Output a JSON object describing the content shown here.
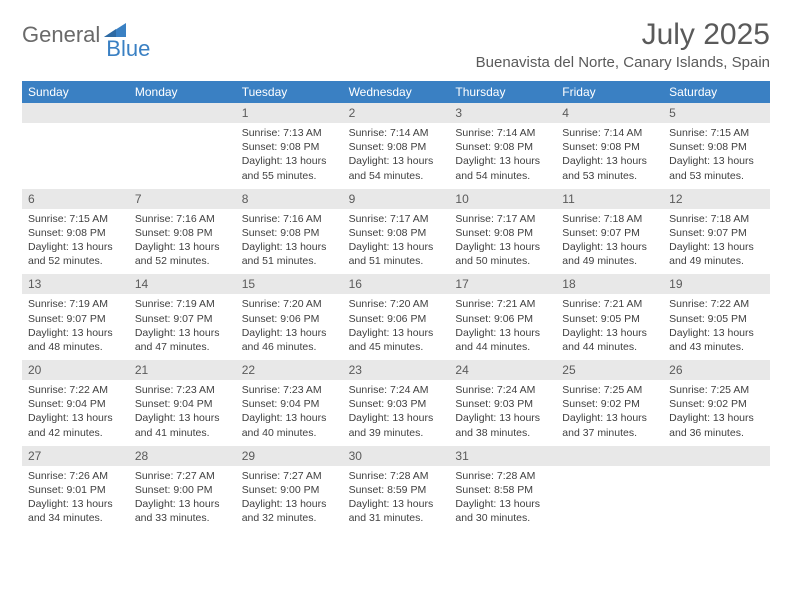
{
  "brand": {
    "part1": "General",
    "part2": "Blue"
  },
  "title": "July 2025",
  "location": "Buenavista del Norte, Canary Islands, Spain",
  "colors": {
    "header_bg": "#3a80c3",
    "daynum_bg": "#e8e8e8",
    "text_muted": "#5a5a5a",
    "text_body": "#404040",
    "logo_gray": "#6a6a6a",
    "logo_blue": "#3a80c3",
    "page_bg": "#ffffff"
  },
  "dow": [
    "Sunday",
    "Monday",
    "Tuesday",
    "Wednesday",
    "Thursday",
    "Friday",
    "Saturday"
  ],
  "weeks": [
    [
      {
        "n": "",
        "sunrise": "",
        "sunset": "",
        "daylight": ""
      },
      {
        "n": "",
        "sunrise": "",
        "sunset": "",
        "daylight": ""
      },
      {
        "n": "1",
        "sunrise": "Sunrise: 7:13 AM",
        "sunset": "Sunset: 9:08 PM",
        "daylight": "Daylight: 13 hours and 55 minutes."
      },
      {
        "n": "2",
        "sunrise": "Sunrise: 7:14 AM",
        "sunset": "Sunset: 9:08 PM",
        "daylight": "Daylight: 13 hours and 54 minutes."
      },
      {
        "n": "3",
        "sunrise": "Sunrise: 7:14 AM",
        "sunset": "Sunset: 9:08 PM",
        "daylight": "Daylight: 13 hours and 54 minutes."
      },
      {
        "n": "4",
        "sunrise": "Sunrise: 7:14 AM",
        "sunset": "Sunset: 9:08 PM",
        "daylight": "Daylight: 13 hours and 53 minutes."
      },
      {
        "n": "5",
        "sunrise": "Sunrise: 7:15 AM",
        "sunset": "Sunset: 9:08 PM",
        "daylight": "Daylight: 13 hours and 53 minutes."
      }
    ],
    [
      {
        "n": "6",
        "sunrise": "Sunrise: 7:15 AM",
        "sunset": "Sunset: 9:08 PM",
        "daylight": "Daylight: 13 hours and 52 minutes."
      },
      {
        "n": "7",
        "sunrise": "Sunrise: 7:16 AM",
        "sunset": "Sunset: 9:08 PM",
        "daylight": "Daylight: 13 hours and 52 minutes."
      },
      {
        "n": "8",
        "sunrise": "Sunrise: 7:16 AM",
        "sunset": "Sunset: 9:08 PM",
        "daylight": "Daylight: 13 hours and 51 minutes."
      },
      {
        "n": "9",
        "sunrise": "Sunrise: 7:17 AM",
        "sunset": "Sunset: 9:08 PM",
        "daylight": "Daylight: 13 hours and 51 minutes."
      },
      {
        "n": "10",
        "sunrise": "Sunrise: 7:17 AM",
        "sunset": "Sunset: 9:08 PM",
        "daylight": "Daylight: 13 hours and 50 minutes."
      },
      {
        "n": "11",
        "sunrise": "Sunrise: 7:18 AM",
        "sunset": "Sunset: 9:07 PM",
        "daylight": "Daylight: 13 hours and 49 minutes."
      },
      {
        "n": "12",
        "sunrise": "Sunrise: 7:18 AM",
        "sunset": "Sunset: 9:07 PM",
        "daylight": "Daylight: 13 hours and 49 minutes."
      }
    ],
    [
      {
        "n": "13",
        "sunrise": "Sunrise: 7:19 AM",
        "sunset": "Sunset: 9:07 PM",
        "daylight": "Daylight: 13 hours and 48 minutes."
      },
      {
        "n": "14",
        "sunrise": "Sunrise: 7:19 AM",
        "sunset": "Sunset: 9:07 PM",
        "daylight": "Daylight: 13 hours and 47 minutes."
      },
      {
        "n": "15",
        "sunrise": "Sunrise: 7:20 AM",
        "sunset": "Sunset: 9:06 PM",
        "daylight": "Daylight: 13 hours and 46 minutes."
      },
      {
        "n": "16",
        "sunrise": "Sunrise: 7:20 AM",
        "sunset": "Sunset: 9:06 PM",
        "daylight": "Daylight: 13 hours and 45 minutes."
      },
      {
        "n": "17",
        "sunrise": "Sunrise: 7:21 AM",
        "sunset": "Sunset: 9:06 PM",
        "daylight": "Daylight: 13 hours and 44 minutes."
      },
      {
        "n": "18",
        "sunrise": "Sunrise: 7:21 AM",
        "sunset": "Sunset: 9:05 PM",
        "daylight": "Daylight: 13 hours and 44 minutes."
      },
      {
        "n": "19",
        "sunrise": "Sunrise: 7:22 AM",
        "sunset": "Sunset: 9:05 PM",
        "daylight": "Daylight: 13 hours and 43 minutes."
      }
    ],
    [
      {
        "n": "20",
        "sunrise": "Sunrise: 7:22 AM",
        "sunset": "Sunset: 9:04 PM",
        "daylight": "Daylight: 13 hours and 42 minutes."
      },
      {
        "n": "21",
        "sunrise": "Sunrise: 7:23 AM",
        "sunset": "Sunset: 9:04 PM",
        "daylight": "Daylight: 13 hours and 41 minutes."
      },
      {
        "n": "22",
        "sunrise": "Sunrise: 7:23 AM",
        "sunset": "Sunset: 9:04 PM",
        "daylight": "Daylight: 13 hours and 40 minutes."
      },
      {
        "n": "23",
        "sunrise": "Sunrise: 7:24 AM",
        "sunset": "Sunset: 9:03 PM",
        "daylight": "Daylight: 13 hours and 39 minutes."
      },
      {
        "n": "24",
        "sunrise": "Sunrise: 7:24 AM",
        "sunset": "Sunset: 9:03 PM",
        "daylight": "Daylight: 13 hours and 38 minutes."
      },
      {
        "n": "25",
        "sunrise": "Sunrise: 7:25 AM",
        "sunset": "Sunset: 9:02 PM",
        "daylight": "Daylight: 13 hours and 37 minutes."
      },
      {
        "n": "26",
        "sunrise": "Sunrise: 7:25 AM",
        "sunset": "Sunset: 9:02 PM",
        "daylight": "Daylight: 13 hours and 36 minutes."
      }
    ],
    [
      {
        "n": "27",
        "sunrise": "Sunrise: 7:26 AM",
        "sunset": "Sunset: 9:01 PM",
        "daylight": "Daylight: 13 hours and 34 minutes."
      },
      {
        "n": "28",
        "sunrise": "Sunrise: 7:27 AM",
        "sunset": "Sunset: 9:00 PM",
        "daylight": "Daylight: 13 hours and 33 minutes."
      },
      {
        "n": "29",
        "sunrise": "Sunrise: 7:27 AM",
        "sunset": "Sunset: 9:00 PM",
        "daylight": "Daylight: 13 hours and 32 minutes."
      },
      {
        "n": "30",
        "sunrise": "Sunrise: 7:28 AM",
        "sunset": "Sunset: 8:59 PM",
        "daylight": "Daylight: 13 hours and 31 minutes."
      },
      {
        "n": "31",
        "sunrise": "Sunrise: 7:28 AM",
        "sunset": "Sunset: 8:58 PM",
        "daylight": "Daylight: 13 hours and 30 minutes."
      },
      {
        "n": "",
        "sunrise": "",
        "sunset": "",
        "daylight": ""
      },
      {
        "n": "",
        "sunrise": "",
        "sunset": "",
        "daylight": ""
      }
    ]
  ]
}
